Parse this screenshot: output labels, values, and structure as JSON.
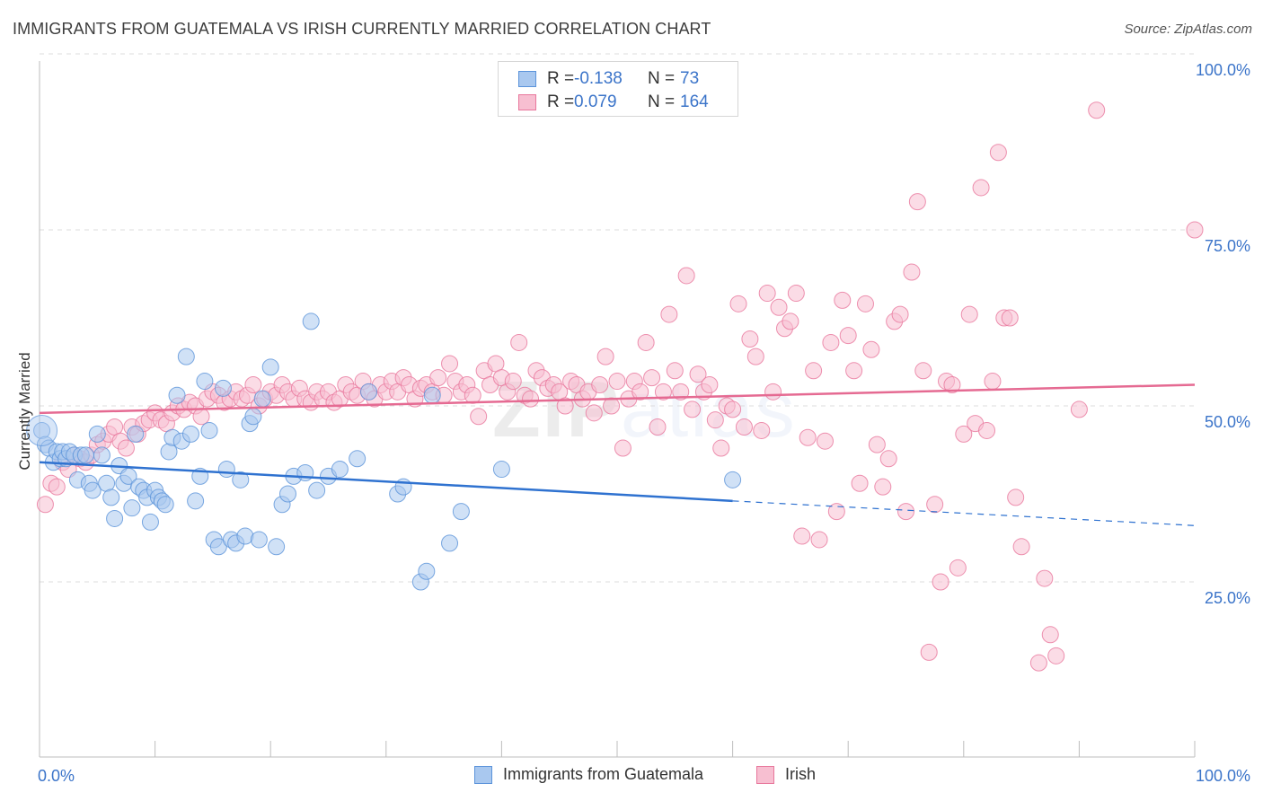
{
  "title": "IMMIGRANTS FROM GUATEMALA VS IRISH CURRENTLY MARRIED CORRELATION CHART",
  "source": "Source: ZipAtlas.com",
  "watermark": {
    "zip": "ZIP",
    "atlas": "atlas"
  },
  "legend": {
    "r_label": "R =",
    "n_label": "N =",
    "rows": [
      {
        "r": "-0.138",
        "n": "73"
      },
      {
        "r": "0.079",
        "n": "164"
      }
    ]
  },
  "colors": {
    "blue_fill": "#a9c8ef",
    "blue_stroke": "#5b93da",
    "blue_line": "#2f72d0",
    "pink_fill": "#f7bfd1",
    "pink_stroke": "#e8779c",
    "pink_line": "#e56a92",
    "axis_label": "#3b74c9"
  },
  "chart_data": {
    "type": "scatter",
    "title": "IMMIGRANTS FROM GUATEMALA VS IRISH CURRENTLY MARRIED CORRELATION CHART",
    "xlabel": "",
    "ylabel": "Currently Married",
    "x_tick_labels": [
      "0.0%",
      "100.0%"
    ],
    "y_tick_labels": [
      "25.0%",
      "50.0%",
      "75.0%",
      "100.0%"
    ],
    "xlim": [
      0,
      100
    ],
    "ylim": [
      0,
      100
    ],
    "grid": "horizontal dashed",
    "legend_position": "top-center and bottom",
    "series": [
      {
        "name": "Immigrants from Guatemala",
        "trend": {
          "x": [
            0,
            60
          ],
          "y": [
            42.0,
            36.5
          ],
          "dashed_to": [
            100,
            33.0
          ]
        },
        "points": [
          [
            0.2,
            46.5
          ],
          [
            0.5,
            44.5
          ],
          [
            0.8,
            44
          ],
          [
            1.2,
            42
          ],
          [
            1.5,
            43.5
          ],
          [
            1.8,
            42.5
          ],
          [
            2.0,
            43.5
          ],
          [
            2.3,
            42.5
          ],
          [
            2.6,
            43.5
          ],
          [
            3.0,
            43
          ],
          [
            3.3,
            39.5
          ],
          [
            3.6,
            43
          ],
          [
            4.0,
            43
          ],
          [
            4.3,
            39
          ],
          [
            4.6,
            38
          ],
          [
            5.0,
            46
          ],
          [
            5.4,
            43
          ],
          [
            5.8,
            39
          ],
          [
            6.2,
            37
          ],
          [
            6.5,
            34
          ],
          [
            6.9,
            41.5
          ],
          [
            7.3,
            39
          ],
          [
            7.7,
            40
          ],
          [
            8.0,
            35.5
          ],
          [
            8.3,
            46
          ],
          [
            8.6,
            38.5
          ],
          [
            9.0,
            38
          ],
          [
            9.3,
            37
          ],
          [
            9.6,
            33.5
          ],
          [
            10.0,
            38
          ],
          [
            10.3,
            37
          ],
          [
            10.6,
            36.5
          ],
          [
            10.9,
            36
          ],
          [
            11.2,
            43.5
          ],
          [
            11.5,
            45.5
          ],
          [
            11.9,
            51.5
          ],
          [
            12.3,
            45
          ],
          [
            12.7,
            57
          ],
          [
            13.1,
            46
          ],
          [
            13.5,
            36.5
          ],
          [
            13.9,
            40
          ],
          [
            14.3,
            53.5
          ],
          [
            14.7,
            46.5
          ],
          [
            15.1,
            31
          ],
          [
            15.5,
            30
          ],
          [
            15.9,
            52.5
          ],
          [
            16.2,
            41
          ],
          [
            16.6,
            31
          ],
          [
            17.0,
            30.5
          ],
          [
            17.4,
            39.5
          ],
          [
            17.8,
            31.5
          ],
          [
            18.2,
            47.5
          ],
          [
            18.5,
            48.5
          ],
          [
            19.0,
            31
          ],
          [
            19.3,
            51
          ],
          [
            20.0,
            55.5
          ],
          [
            20.5,
            30
          ],
          [
            21.0,
            36
          ],
          [
            21.5,
            37.5
          ],
          [
            22.0,
            40
          ],
          [
            23.0,
            40.5
          ],
          [
            23.5,
            62
          ],
          [
            24.0,
            38
          ],
          [
            25.0,
            40
          ],
          [
            26.0,
            41
          ],
          [
            27.5,
            42.5
          ],
          [
            28.5,
            52
          ],
          [
            31.0,
            37.5
          ],
          [
            31.5,
            38.5
          ],
          [
            33.0,
            25
          ],
          [
            33.5,
            26.5
          ],
          [
            34.0,
            51.5
          ],
          [
            35.5,
            30.5
          ],
          [
            36.5,
            35
          ],
          [
            40.0,
            41
          ],
          [
            60.0,
            39.5
          ]
        ]
      },
      {
        "name": "Irish",
        "trend": {
          "x": [
            0,
            100
          ],
          "y": [
            49,
            53
          ]
        },
        "points": [
          [
            0.5,
            36
          ],
          [
            1.0,
            39
          ],
          [
            1.5,
            38.5
          ],
          [
            2.0,
            42
          ],
          [
            2.5,
            41
          ],
          [
            3.0,
            43
          ],
          [
            3.5,
            42.5
          ],
          [
            4.0,
            42
          ],
          [
            4.5,
            43
          ],
          [
            5.0,
            44.5
          ],
          [
            5.5,
            45
          ],
          [
            6.0,
            46
          ],
          [
            6.5,
            47
          ],
          [
            7.0,
            45
          ],
          [
            7.5,
            44
          ],
          [
            8.0,
            47
          ],
          [
            8.5,
            46
          ],
          [
            9.0,
            47.5
          ],
          [
            9.5,
            48
          ],
          [
            10.0,
            49
          ],
          [
            10.5,
            48
          ],
          [
            11.0,
            47.5
          ],
          [
            11.5,
            49
          ],
          [
            12.0,
            50
          ],
          [
            12.5,
            49.5
          ],
          [
            13.0,
            50.5
          ],
          [
            13.5,
            50
          ],
          [
            14.0,
            48.5
          ],
          [
            14.5,
            51
          ],
          [
            15.0,
            52
          ],
          [
            15.5,
            51.5
          ],
          [
            16.0,
            50.5
          ],
          [
            16.5,
            51
          ],
          [
            17.0,
            52
          ],
          [
            17.5,
            51
          ],
          [
            18.0,
            51.5
          ],
          [
            18.5,
            53
          ],
          [
            19.0,
            50
          ],
          [
            19.5,
            51
          ],
          [
            20.0,
            52
          ],
          [
            20.5,
            51.5
          ],
          [
            21.0,
            53
          ],
          [
            21.5,
            52
          ],
          [
            22.0,
            51
          ],
          [
            22.5,
            52.5
          ],
          [
            23.0,
            51
          ],
          [
            23.5,
            50.5
          ],
          [
            24.0,
            52
          ],
          [
            24.5,
            51
          ],
          [
            25.0,
            52
          ],
          [
            25.5,
            50.5
          ],
          [
            26.0,
            51
          ],
          [
            26.5,
            53
          ],
          [
            27.0,
            52
          ],
          [
            27.5,
            51.5
          ],
          [
            28.0,
            53.5
          ],
          [
            28.5,
            52
          ],
          [
            29.0,
            51
          ],
          [
            29.5,
            53
          ],
          [
            30.0,
            52
          ],
          [
            30.5,
            53.5
          ],
          [
            31.0,
            52
          ],
          [
            31.5,
            54
          ],
          [
            32.0,
            53
          ],
          [
            32.5,
            51
          ],
          [
            33.0,
            52.5
          ],
          [
            33.5,
            53
          ],
          [
            34.0,
            52
          ],
          [
            34.5,
            54
          ],
          [
            35.0,
            51.5
          ],
          [
            35.5,
            56
          ],
          [
            36.0,
            53.5
          ],
          [
            36.5,
            52
          ],
          [
            37.0,
            53
          ],
          [
            37.5,
            51.5
          ],
          [
            38.0,
            48.5
          ],
          [
            38.5,
            55
          ],
          [
            39.0,
            53
          ],
          [
            39.5,
            56
          ],
          [
            40.0,
            54
          ],
          [
            40.5,
            52
          ],
          [
            41.0,
            53.5
          ],
          [
            41.5,
            59
          ],
          [
            42.0,
            51.5
          ],
          [
            42.5,
            51
          ],
          [
            43.0,
            55
          ],
          [
            43.5,
            54
          ],
          [
            44.0,
            52.5
          ],
          [
            44.5,
            53
          ],
          [
            45.0,
            52
          ],
          [
            45.5,
            50
          ],
          [
            46.0,
            53.5
          ],
          [
            46.5,
            53
          ],
          [
            47.0,
            51
          ],
          [
            47.5,
            52
          ],
          [
            48.0,
            49
          ],
          [
            48.5,
            53
          ],
          [
            49.0,
            57
          ],
          [
            49.5,
            50
          ],
          [
            50.0,
            53.5
          ],
          [
            50.5,
            44
          ],
          [
            51.0,
            51
          ],
          [
            51.5,
            53.5
          ],
          [
            52.0,
            52
          ],
          [
            52.5,
            59
          ],
          [
            53.0,
            54
          ],
          [
            53.5,
            47
          ],
          [
            54.0,
            52
          ],
          [
            54.5,
            63
          ],
          [
            55.0,
            55
          ],
          [
            55.5,
            52
          ],
          [
            56.0,
            68.5
          ],
          [
            56.5,
            49.5
          ],
          [
            57.0,
            54.5
          ],
          [
            57.5,
            52
          ],
          [
            58.0,
            53
          ],
          [
            58.5,
            48
          ],
          [
            59.0,
            44
          ],
          [
            59.5,
            50
          ],
          [
            60.0,
            49.5
          ],
          [
            60.5,
            64.5
          ],
          [
            61.0,
            47
          ],
          [
            61.5,
            59.5
          ],
          [
            62.0,
            57
          ],
          [
            62.5,
            46.5
          ],
          [
            63.0,
            66
          ],
          [
            63.5,
            52
          ],
          [
            64.0,
            64
          ],
          [
            64.5,
            61
          ],
          [
            65.0,
            62
          ],
          [
            65.5,
            66
          ],
          [
            66.0,
            31.5
          ],
          [
            66.5,
            45.5
          ],
          [
            67.0,
            55
          ],
          [
            67.5,
            31
          ],
          [
            68.0,
            45
          ],
          [
            68.5,
            59
          ],
          [
            69.0,
            35
          ],
          [
            69.5,
            65
          ],
          [
            70.0,
            60
          ],
          [
            70.5,
            55
          ],
          [
            71.0,
            39
          ],
          [
            71.5,
            64.5
          ],
          [
            72.0,
            58
          ],
          [
            72.5,
            44.5
          ],
          [
            73.0,
            38.5
          ],
          [
            73.5,
            42.5
          ],
          [
            74.0,
            62
          ],
          [
            74.5,
            63
          ],
          [
            75.0,
            35
          ],
          [
            75.5,
            69
          ],
          [
            76.0,
            79
          ],
          [
            76.5,
            55
          ],
          [
            77.0,
            15
          ],
          [
            77.5,
            36
          ],
          [
            78.0,
            25
          ],
          [
            78.5,
            53.5
          ],
          [
            79.0,
            53
          ],
          [
            79.5,
            27
          ],
          [
            80.0,
            46
          ],
          [
            80.5,
            63
          ],
          [
            81.0,
            47.5
          ],
          [
            81.5,
            81
          ],
          [
            82.0,
            46.5
          ],
          [
            82.5,
            53.5
          ],
          [
            83.0,
            86
          ],
          [
            83.5,
            62.5
          ],
          [
            84.0,
            62.5
          ],
          [
            84.5,
            37
          ],
          [
            85.0,
            30
          ],
          [
            86.5,
            13.5
          ],
          [
            87.0,
            25.5
          ],
          [
            87.5,
            17.5
          ],
          [
            88.0,
            14.5
          ],
          [
            90.0,
            49.5
          ],
          [
            91.5,
            92
          ],
          [
            100.0,
            75
          ]
        ]
      }
    ]
  }
}
